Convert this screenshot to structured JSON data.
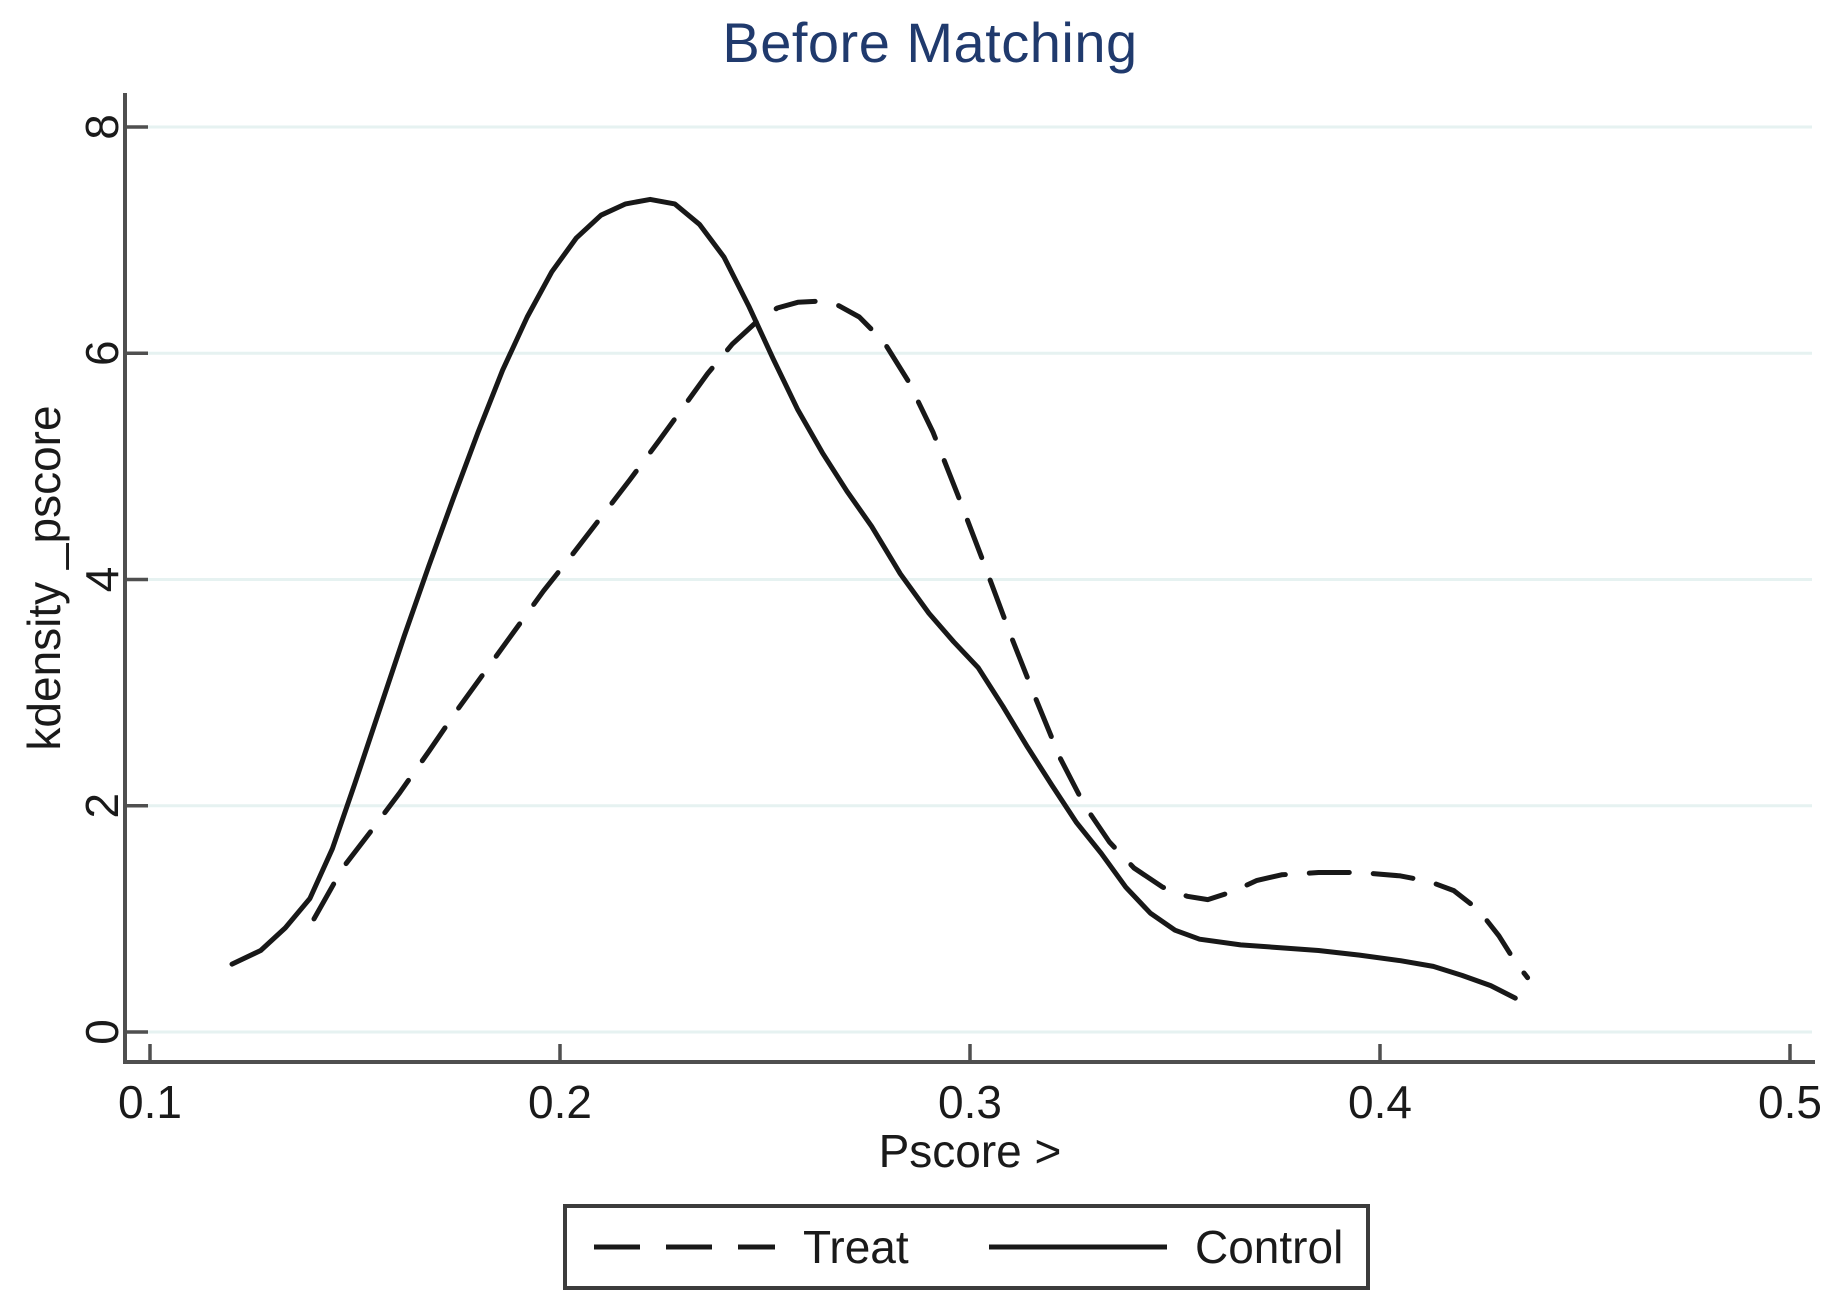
{
  "chart_data": {
    "type": "line",
    "title": "Before Matching",
    "xlabel": "Pscore >",
    "ylabel": "kdensity _pscore",
    "xlim": [
      0.1,
      0.5
    ],
    "ylim": [
      0,
      8
    ],
    "xticks": [
      0.1,
      0.2,
      0.3,
      0.4,
      0.5
    ],
    "yticks": [
      0,
      2,
      4,
      6,
      8
    ],
    "grid": "horizontal-only",
    "legend_position": "bottom-outside",
    "series": [
      {
        "name": "Treat",
        "line_style": "dashed",
        "color": "#181818",
        "points": [
          [
            0.14,
            1.0
          ],
          [
            0.147,
            1.45
          ],
          [
            0.154,
            1.78
          ],
          [
            0.161,
            2.12
          ],
          [
            0.168,
            2.48
          ],
          [
            0.175,
            2.85
          ],
          [
            0.182,
            3.2
          ],
          [
            0.189,
            3.55
          ],
          [
            0.196,
            3.9
          ],
          [
            0.203,
            4.22
          ],
          [
            0.21,
            4.55
          ],
          [
            0.217,
            4.88
          ],
          [
            0.224,
            5.22
          ],
          [
            0.23,
            5.52
          ],
          [
            0.236,
            5.82
          ],
          [
            0.242,
            6.08
          ],
          [
            0.248,
            6.28
          ],
          [
            0.253,
            6.4
          ],
          [
            0.258,
            6.45
          ],
          [
            0.263,
            6.46
          ],
          [
            0.268,
            6.42
          ],
          [
            0.273,
            6.32
          ],
          [
            0.279,
            6.1
          ],
          [
            0.285,
            5.75
          ],
          [
            0.291,
            5.3
          ],
          [
            0.297,
            4.75
          ],
          [
            0.303,
            4.18
          ],
          [
            0.31,
            3.5
          ],
          [
            0.316,
            2.95
          ],
          [
            0.322,
            2.42
          ],
          [
            0.328,
            2.0
          ],
          [
            0.334,
            1.68
          ],
          [
            0.34,
            1.45
          ],
          [
            0.347,
            1.28
          ],
          [
            0.353,
            1.2
          ],
          [
            0.358,
            1.17
          ],
          [
            0.364,
            1.24
          ],
          [
            0.37,
            1.34
          ],
          [
            0.376,
            1.39
          ],
          [
            0.385,
            1.41
          ],
          [
            0.395,
            1.41
          ],
          [
            0.405,
            1.38
          ],
          [
            0.412,
            1.33
          ],
          [
            0.418,
            1.25
          ],
          [
            0.424,
            1.08
          ],
          [
            0.429,
            0.85
          ],
          [
            0.433,
            0.62
          ],
          [
            0.436,
            0.48
          ]
        ]
      },
      {
        "name": "Control",
        "line_style": "solid",
        "color": "#181818",
        "points": [
          [
            0.12,
            0.6
          ],
          [
            0.127,
            0.72
          ],
          [
            0.133,
            0.92
          ],
          [
            0.139,
            1.18
          ],
          [
            0.1445,
            1.62
          ],
          [
            0.15,
            2.2
          ],
          [
            0.156,
            2.85
          ],
          [
            0.162,
            3.5
          ],
          [
            0.168,
            4.12
          ],
          [
            0.174,
            4.72
          ],
          [
            0.18,
            5.3
          ],
          [
            0.186,
            5.85
          ],
          [
            0.192,
            6.32
          ],
          [
            0.198,
            6.72
          ],
          [
            0.204,
            7.02
          ],
          [
            0.21,
            7.22
          ],
          [
            0.216,
            7.32
          ],
          [
            0.222,
            7.36
          ],
          [
            0.228,
            7.32
          ],
          [
            0.234,
            7.14
          ],
          [
            0.24,
            6.85
          ],
          [
            0.246,
            6.42
          ],
          [
            0.252,
            5.95
          ],
          [
            0.258,
            5.5
          ],
          [
            0.264,
            5.12
          ],
          [
            0.27,
            4.78
          ],
          [
            0.276,
            4.47
          ],
          [
            0.283,
            4.05
          ],
          [
            0.29,
            3.7
          ],
          [
            0.296,
            3.45
          ],
          [
            0.302,
            3.22
          ],
          [
            0.308,
            2.88
          ],
          [
            0.314,
            2.52
          ],
          [
            0.32,
            2.18
          ],
          [
            0.326,
            1.85
          ],
          [
            0.332,
            1.58
          ],
          [
            0.338,
            1.28
          ],
          [
            0.344,
            1.05
          ],
          [
            0.35,
            0.9
          ],
          [
            0.356,
            0.82
          ],
          [
            0.366,
            0.77
          ],
          [
            0.374,
            0.75
          ],
          [
            0.385,
            0.72
          ],
          [
            0.395,
            0.68
          ],
          [
            0.405,
            0.63
          ],
          [
            0.413,
            0.58
          ],
          [
            0.42,
            0.5
          ],
          [
            0.427,
            0.41
          ],
          [
            0.433,
            0.3
          ]
        ]
      }
    ]
  },
  "legend": {
    "items": [
      {
        "label": "Treat",
        "line_style": "dashed"
      },
      {
        "label": "Control",
        "line_style": "solid"
      }
    ]
  },
  "colors": {
    "title": "#203a6d",
    "grid": "#e6f2f1",
    "axis": "#4f4f4f",
    "text": "#1a1a1a",
    "line": "#181818",
    "background": "#ffffff",
    "legend_border": "#3c3c3c"
  }
}
